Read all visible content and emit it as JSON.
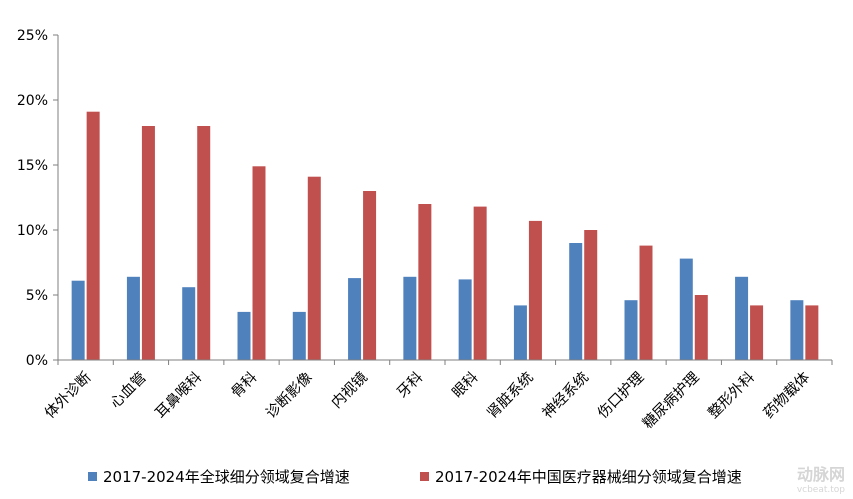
{
  "chart_data": {
    "type": "bar",
    "categories": [
      "体外诊断",
      "心血管",
      "耳鼻喉科",
      "骨科",
      "诊断影像",
      "内视镜",
      "牙科",
      "眼科",
      "肾脏系统",
      "神经系统",
      "伤口护理",
      "糖尿病护理",
      "整形外科",
      "药物载体"
    ],
    "series": [
      {
        "name": "2017-2024年全球细分领域复合增速",
        "color": "#4f81bd",
        "values": [
          6.1,
          6.4,
          5.6,
          3.7,
          3.7,
          6.3,
          6.4,
          6.2,
          4.2,
          9.0,
          4.6,
          7.8,
          6.4,
          4.6
        ]
      },
      {
        "name": "2017-2024年中国医疗器械细分领域复合增速",
        "color": "#c0504d",
        "values": [
          19.1,
          18.0,
          18.0,
          14.9,
          14.1,
          13.0,
          12.0,
          11.8,
          10.7,
          10.0,
          8.8,
          5.0,
          4.2,
          4.2
        ]
      }
    ],
    "yticks": [
      "0%",
      "5%",
      "10%",
      "15%",
      "20%",
      "25%"
    ],
    "ylim": [
      0,
      25
    ],
    "legend_position": "bottom",
    "grid": false,
    "title": "",
    "xlabel": "",
    "ylabel": ""
  },
  "watermark": {
    "logo": "动脉网",
    "url": "vcbeat.top"
  }
}
